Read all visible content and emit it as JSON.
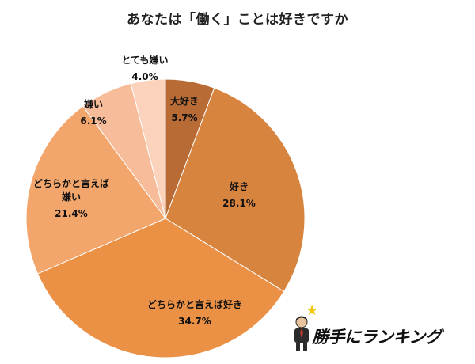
{
  "chart_data": {
    "type": "pie",
    "title": "あなたは「働く」ことは好きですか",
    "slices": [
      {
        "label": "大好き",
        "value": 5.7,
        "display": "5.7%",
        "color": "#b86b35"
      },
      {
        "label": "好き",
        "value": 28.1,
        "display": "28.1%",
        "color": "#d7843f"
      },
      {
        "label": "どちらかと言えば好き",
        "value": 34.7,
        "display": "34.7%",
        "color": "#ea9145"
      },
      {
        "label": "どちらかと言えば嫌い",
        "value": 21.4,
        "display": "21.4%",
        "color": "#f2a66b"
      },
      {
        "label": "嫌い",
        "value": 6.1,
        "display": "6.1%",
        "color": "#f7bc99"
      },
      {
        "label": "とても嫌い",
        "value": 4.0,
        "display": "4.0%",
        "color": "#fbd3bd"
      }
    ],
    "start": "12 o'clock",
    "direction": "clockwise"
  },
  "brand": {
    "text": "勝手にランキング",
    "icon": "businessman-with-star-icon"
  }
}
